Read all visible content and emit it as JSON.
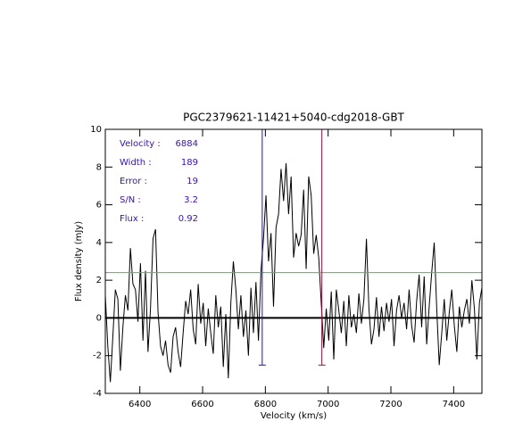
{
  "chart_data": {
    "type": "line",
    "title": "PGC2379621-11421+5040-cdg2018-GBT",
    "xlabel": "Velocity (km/s)",
    "ylabel": "Flux density (mJy)",
    "xlim": [
      6290,
      7490
    ],
    "ylim": [
      -4,
      10
    ],
    "xticks": [
      6400,
      6600,
      6800,
      7000,
      7200,
      7400
    ],
    "yticks": [
      -4,
      -2,
      0,
      2,
      4,
      6,
      8,
      10
    ],
    "color": "#000000",
    "x": [
      6290,
      6298,
      6306,
      6314,
      6322,
      6330,
      6338,
      6346,
      6354,
      6362,
      6370,
      6378,
      6386,
      6394,
      6402,
      6410,
      6418,
      6426,
      6434,
      6442,
      6450,
      6458,
      6466,
      6474,
      6482,
      6490,
      6498,
      6506,
      6514,
      6522,
      6530,
      6538,
      6546,
      6554,
      6562,
      6570,
      6578,
      6586,
      6594,
      6602,
      6610,
      6618,
      6626,
      6634,
      6642,
      6650,
      6658,
      6666,
      6674,
      6682,
      6690,
      6698,
      6706,
      6714,
      6722,
      6730,
      6738,
      6746,
      6754,
      6762,
      6770,
      6778,
      6786,
      6794,
      6802,
      6810,
      6818,
      6826,
      6834,
      6842,
      6850,
      6858,
      6866,
      6874,
      6882,
      6890,
      6898,
      6906,
      6914,
      6922,
      6930,
      6938,
      6946,
      6954,
      6962,
      6970,
      6978,
      6986,
      6994,
      7002,
      7010,
      7018,
      7026,
      7034,
      7042,
      7050,
      7058,
      7066,
      7074,
      7082,
      7090,
      7098,
      7106,
      7114,
      7122,
      7130,
      7138,
      7146,
      7154,
      7162,
      7170,
      7178,
      7186,
      7194,
      7202,
      7210,
      7218,
      7226,
      7234,
      7242,
      7250,
      7258,
      7266,
      7274,
      7282,
      7290,
      7298,
      7306,
      7314,
      7322,
      7330,
      7338,
      7346,
      7354,
      7362,
      7370,
      7378,
      7386,
      7394,
      7402,
      7410,
      7418,
      7426,
      7434,
      7442,
      7450,
      7458,
      7466,
      7474,
      7482,
      7490
    ],
    "values": [
      1.2,
      -1.5,
      -3.4,
      -1.0,
      1.5,
      1.0,
      -2.8,
      -0.5,
      1.2,
      0.4,
      3.7,
      1.8,
      1.5,
      -0.2,
      2.9,
      -1.2,
      2.5,
      -1.8,
      0.5,
      4.2,
      4.7,
      0.3,
      -1.5,
      -2.0,
      -1.2,
      -2.5,
      -2.9,
      -1.0,
      -0.5,
      -1.8,
      -2.6,
      -0.8,
      0.9,
      0.2,
      1.5,
      -0.6,
      -1.4,
      1.8,
      -0.3,
      0.8,
      -1.5,
      0.5,
      -0.8,
      -1.9,
      1.2,
      -0.5,
      0.6,
      -2.6,
      0.2,
      -3.2,
      0.8,
      3.0,
      1.5,
      -0.6,
      1.2,
      -1.0,
      0.4,
      -2.0,
      1.6,
      -0.8,
      1.9,
      -1.2,
      2.5,
      4.2,
      6.5,
      3.0,
      4.5,
      0.6,
      4.8,
      5.5,
      7.9,
      6.2,
      8.2,
      5.5,
      7.5,
      3.2,
      4.5,
      3.8,
      4.4,
      6.8,
      2.6,
      7.5,
      6.5,
      3.4,
      4.4,
      3.2,
      0.8,
      -1.6,
      0.5,
      -1.2,
      1.4,
      -2.2,
      1.5,
      0.4,
      -0.8,
      0.9,
      -1.5,
      1.2,
      -0.5,
      0.2,
      -0.8,
      1.3,
      -0.3,
      1.0,
      4.2,
      0.5,
      -1.4,
      -0.6,
      1.1,
      -1.0,
      0.6,
      -0.7,
      0.8,
      -0.2,
      1.0,
      -1.5,
      0.4,
      1.2,
      0.0,
      0.8,
      -0.6,
      1.5,
      -0.4,
      -1.3,
      0.9,
      2.3,
      -0.5,
      2.2,
      -1.4,
      0.6,
      2.4,
      4.0,
      0.5,
      -2.5,
      -0.8,
      1.0,
      -1.2,
      0.3,
      1.5,
      -0.4,
      -1.8,
      0.6,
      -0.5,
      0.4,
      1.0,
      -0.3,
      2.0,
      0.5,
      -2.2,
      0.8,
      1.6
    ],
    "markers": [
      {
        "x": 6790,
        "range": [
          -2.5,
          10
        ],
        "color": "#1a10c0"
      },
      {
        "x": 6980,
        "range": [
          -2.5,
          10
        ],
        "color": "#8a1040"
      }
    ],
    "level": {
      "value": 2.4,
      "color": "#33cc33"
    },
    "zero_line": {
      "value": 0,
      "color": "#000000"
    },
    "annotations": [
      {
        "label": "Velocity :",
        "value": 6884
      },
      {
        "label": "Width :",
        "value": 189
      },
      {
        "label": "Error :",
        "value": 19
      },
      {
        "label": "S/N :",
        "value": 3.2
      },
      {
        "label": "Flux :",
        "value": 0.92
      }
    ]
  }
}
